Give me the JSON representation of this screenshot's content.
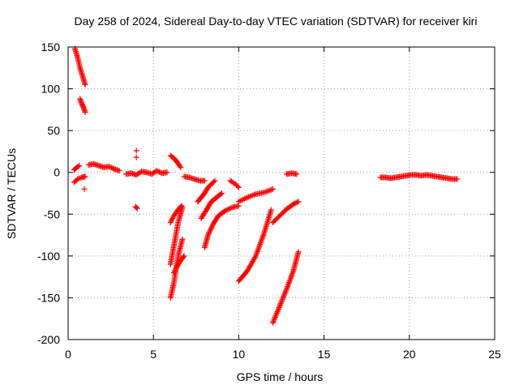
{
  "chart_data": {
    "type": "scatter",
    "title": "Day 258 of 2024, Sidereal Day-to-day VTEC variation (SDTVAR) for receiver kiri",
    "xlabel": "GPS time / hours",
    "ylabel": "SDTVAR / TECUs",
    "xlim": [
      0,
      25
    ],
    "ylim": [
      -200,
      150
    ],
    "xticks": [
      "0",
      "5",
      "10",
      "15",
      "20",
      "25"
    ],
    "yticks": [
      "150",
      "100",
      "50",
      "0",
      "-50",
      "-100",
      "-150",
      "-200"
    ],
    "grid": true,
    "marker": "plus",
    "color": "#ff0000",
    "segments": [
      {
        "x": [
          0.4,
          0.55,
          0.7,
          0.85,
          1.0
        ],
        "y": [
          148,
          138,
          125,
          115,
          105
        ]
      },
      {
        "x": [
          0.7,
          0.8,
          0.9,
          1.0
        ],
        "y": [
          88,
          82,
          78,
          72
        ]
      },
      {
        "x": [
          0.95
        ],
        "y": [
          -20
        ]
      },
      {
        "x": [
          0.35,
          0.5,
          0.65
        ],
        "y": [
          3,
          6,
          8
        ]
      },
      {
        "x": [
          0.35,
          0.55,
          0.8,
          1.0
        ],
        "y": [
          -12,
          -8,
          -6,
          -5
        ]
      },
      {
        "x": [
          1.2,
          1.5,
          1.8,
          2.1,
          2.4,
          2.7,
          3.0
        ],
        "y": [
          9,
          10,
          8,
          6,
          7,
          4,
          2
        ]
      },
      {
        "x": [
          3.4,
          3.7,
          4.0,
          4.3,
          4.6,
          4.9,
          5.2,
          5.5,
          5.8
        ],
        "y": [
          -2,
          -1,
          -3,
          1,
          0,
          -2,
          2,
          -1,
          0
        ]
      },
      {
        "x": [
          4.0
        ],
        "y": [
          26
        ]
      },
      {
        "x": [
          4.0
        ],
        "y": [
          18
        ]
      },
      {
        "x": [
          3.95,
          4.05
        ],
        "y": [
          -41,
          -43
        ]
      },
      {
        "x": [
          6.0,
          6.2,
          6.4,
          6.6
        ],
        "y": [
          20,
          17,
          12,
          6
        ]
      },
      {
        "x": [
          6.0,
          6.2,
          6.45,
          6.7
        ],
        "y": [
          -110,
          -88,
          -60,
          -42
        ]
      },
      {
        "x": [
          6.0,
          6.2,
          6.45,
          6.7
        ],
        "y": [
          -150,
          -132,
          -100,
          -80
        ]
      },
      {
        "x": [
          6.0,
          6.2,
          6.4,
          6.65
        ],
        "y": [
          -60,
          -52,
          -46,
          -40
        ]
      },
      {
        "x": [
          6.2,
          6.4,
          6.6,
          6.8
        ],
        "y": [
          -120,
          -112,
          -105,
          -100
        ]
      },
      {
        "x": [
          6.8,
          7.1,
          7.4,
          7.7,
          8.0
        ],
        "y": [
          -5,
          -6,
          -8,
          -10,
          -10
        ]
      },
      {
        "x": [
          7.6,
          7.8,
          8.0,
          8.2,
          8.4,
          8.6
        ],
        "y": [
          -35,
          -30,
          -25,
          -18,
          -14,
          -10
        ]
      },
      {
        "x": [
          7.8,
          8.1,
          8.4,
          8.7,
          9.0
        ],
        "y": [
          -55,
          -45,
          -35,
          -30,
          -25
        ]
      },
      {
        "x": [
          8.0,
          8.2,
          8.5,
          8.8,
          9.2,
          9.6,
          10.0
        ],
        "y": [
          -90,
          -75,
          -62,
          -52,
          -46,
          -42,
          -40
        ]
      },
      {
        "x": [
          9.5,
          9.8,
          10.0
        ],
        "y": [
          -10,
          -14,
          -18
        ]
      },
      {
        "x": [
          10.0,
          10.5,
          11.0,
          11.5,
          12.0
        ],
        "y": [
          -35,
          -30,
          -26,
          -24,
          -20
        ]
      },
      {
        "x": [
          10.0,
          10.5,
          11.0,
          11.5,
          11.9
        ],
        "y": [
          -130,
          -118,
          -100,
          -72,
          -45
        ]
      },
      {
        "x": [
          12.0,
          12.4,
          12.8,
          13.2,
          13.5
        ],
        "y": [
          -180,
          -160,
          -140,
          -118,
          -95
        ]
      },
      {
        "x": [
          12.0,
          12.4,
          12.8,
          13.2,
          13.5
        ],
        "y": [
          -60,
          -52,
          -44,
          -38,
          -35
        ]
      },
      {
        "x": [
          12.8,
          13.1,
          13.4
        ],
        "y": [
          -2,
          -1,
          -2
        ]
      },
      {
        "x": [
          18.3,
          18.6,
          18.9,
          19.2,
          19.5,
          19.8,
          20.1,
          20.4,
          20.7,
          21.0,
          21.3,
          21.6,
          21.9,
          22.2,
          22.5,
          22.8
        ],
        "y": [
          -6,
          -6,
          -7,
          -6,
          -5,
          -4,
          -3,
          -3,
          -4,
          -3,
          -4,
          -5,
          -6,
          -7,
          -8,
          -8
        ]
      }
    ]
  }
}
